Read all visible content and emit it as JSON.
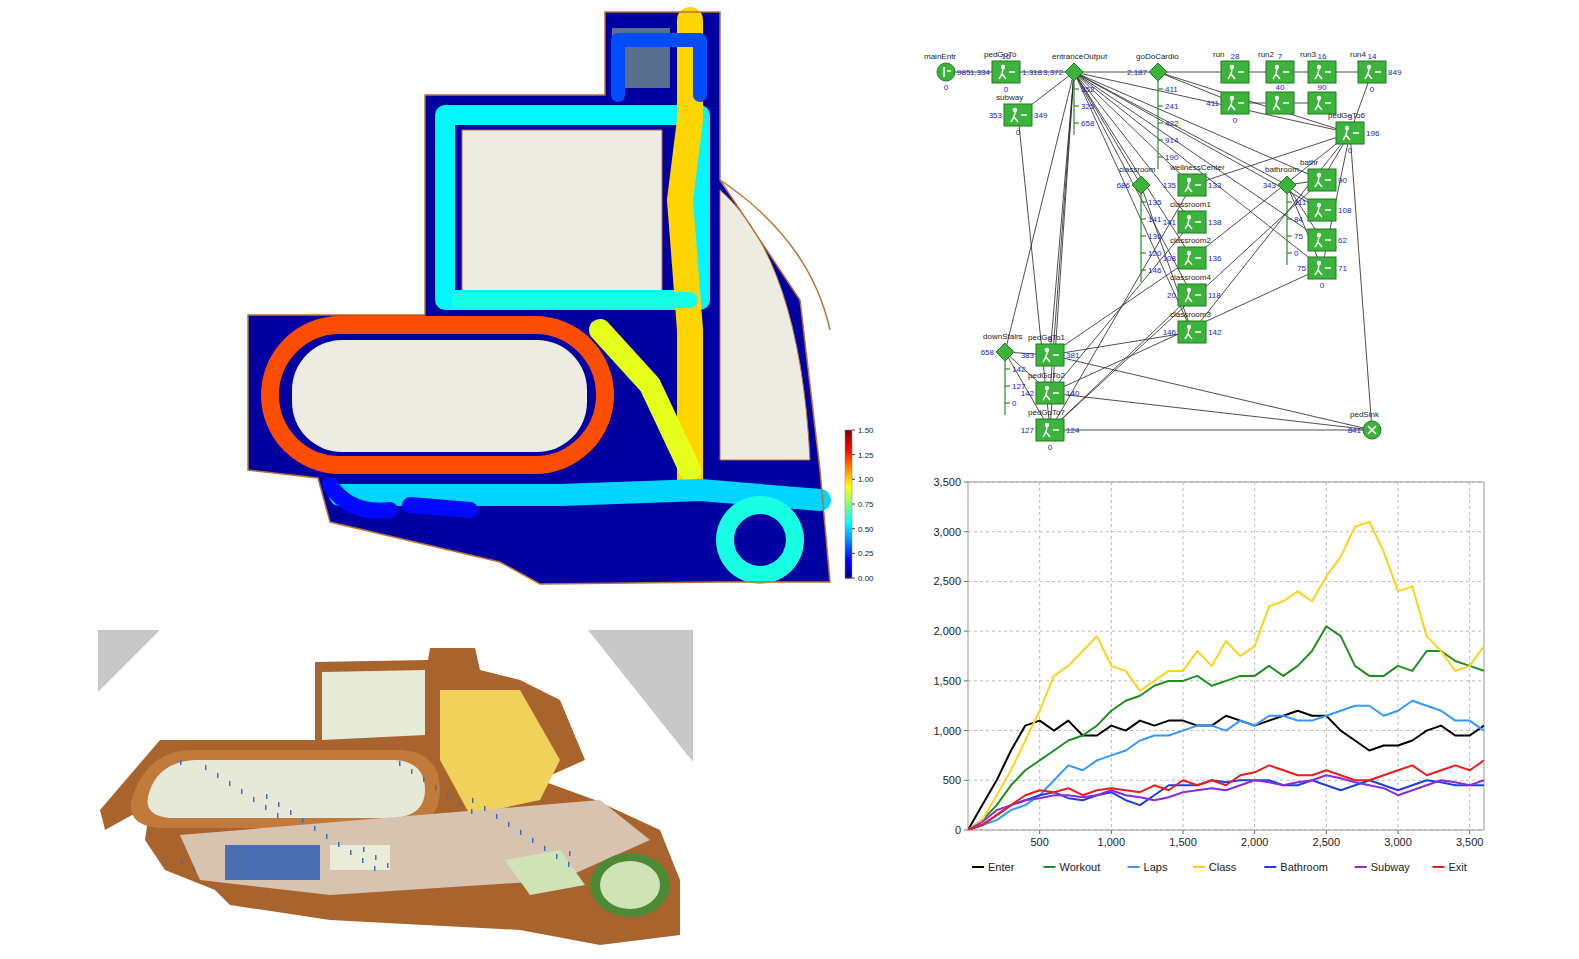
{
  "chart_data": [
    {
      "type": "heatmap",
      "values": [
        0.05,
        1.2,
        0.55,
        1.0,
        0.9,
        0.5,
        0.6,
        0.3,
        0.2,
        0.6
      ],
      "colorbar_range": [
        0,
        1.5
      ],
      "colorbar_ticks": [
        {
          "value": 0,
          "label": "0.00"
        },
        {
          "value": 0.25,
          "label": "0.25"
        },
        {
          "value": 0.5,
          "label": "0.50"
        },
        {
          "value": 0.75,
          "label": "0.75"
        },
        {
          "value": 1,
          "label": "1.00"
        },
        {
          "value": 1.25,
          "label": "1.25"
        },
        {
          "value": 1.5,
          "label": "1.50"
        }
      ]
    },
    {
      "type": "line",
      "grid": true,
      "legend": "bottom",
      "x": [
        0,
        100,
        200,
        300,
        400,
        500,
        600,
        700,
        800,
        900,
        1000,
        1100,
        1200,
        1300,
        1400,
        1500,
        1600,
        1700,
        1800,
        1900,
        2000,
        2100,
        2200,
        2300,
        2400,
        2500,
        2600,
        2700,
        2800,
        2900,
        3000,
        3100,
        3200,
        3300,
        3400,
        3500,
        3600
      ],
      "xlim": [
        0,
        3600
      ],
      "xticks": [
        500,
        {
          "value": 1000,
          "label": "1,000"
        },
        {
          "value": 1500,
          "label": "1,500"
        },
        {
          "value": 2000,
          "label": "2,000"
        },
        {
          "value": 2500,
          "label": "2,500"
        },
        {
          "value": 3000,
          "label": "3,000"
        },
        {
          "value": 3500,
          "label": "3,500"
        }
      ],
      "ylim": [
        0,
        3500
      ],
      "yticks": [
        0,
        500,
        {
          "value": 1000,
          "label": "1,000"
        },
        {
          "value": 1500,
          "label": "1,500"
        },
        {
          "value": 2000,
          "label": "2,000"
        },
        {
          "value": 2500,
          "label": "2,500"
        },
        {
          "value": 3000,
          "label": "3,000"
        },
        {
          "value": 3500,
          "label": "3,500"
        }
      ],
      "series": [
        {
          "name": "Enter",
          "color": "#000000",
          "values": [
            0,
            250,
            500,
            800,
            1050,
            1100,
            1000,
            1100,
            950,
            950,
            1050,
            1000,
            1100,
            1050,
            1100,
            1100,
            1050,
            1050,
            1150,
            1100,
            1050,
            1100,
            1150,
            1200,
            1150,
            1150,
            1000,
            900,
            800,
            850,
            850,
            900,
            1000,
            1050,
            950,
            950,
            1050
          ]
        },
        {
          "name": "Workout",
          "color": "#1f8f1f",
          "values": [
            0,
            100,
            250,
            450,
            600,
            700,
            800,
            900,
            950,
            1050,
            1200,
            1300,
            1350,
            1450,
            1500,
            1500,
            1550,
            1450,
            1500,
            1550,
            1550,
            1650,
            1550,
            1650,
            1800,
            2050,
            1950,
            1650,
            1550,
            1550,
            1650,
            1600,
            1800,
            1800,
            1700,
            1650,
            1600
          ]
        },
        {
          "name": "Laps",
          "color": "#3399ff",
          "values": [
            0,
            50,
            100,
            200,
            250,
            350,
            500,
            650,
            600,
            700,
            750,
            800,
            900,
            950,
            950,
            1000,
            1050,
            1050,
            1000,
            1100,
            1050,
            1150,
            1150,
            1100,
            1100,
            1150,
            1200,
            1250,
            1250,
            1150,
            1200,
            1300,
            1250,
            1200,
            1100,
            1100,
            1000
          ]
        },
        {
          "name": "Class",
          "color": "#ffd21a",
          "values": [
            0,
            100,
            350,
            600,
            900,
            1200,
            1550,
            1650,
            1800,
            1950,
            1650,
            1600,
            1400,
            1500,
            1600,
            1600,
            1800,
            1650,
            1900,
            1750,
            1850,
            2250,
            2300,
            2400,
            2300,
            2550,
            2750,
            3050,
            3100,
            2800,
            2400,
            2450,
            1950,
            1800,
            1600,
            1650,
            1850
          ]
        },
        {
          "name": "Bathroom",
          "color": "#1f3fe0",
          "values": [
            0,
            50,
            150,
            250,
            300,
            350,
            380,
            320,
            300,
            350,
            380,
            300,
            250,
            350,
            450,
            450,
            450,
            500,
            480,
            500,
            500,
            500,
            450,
            450,
            500,
            450,
            400,
            450,
            500,
            450,
            400,
            450,
            500,
            480,
            450,
            450,
            450
          ]
        },
        {
          "name": "Subway",
          "color": "#8a2be2",
          "values": [
            0,
            80,
            200,
            250,
            300,
            320,
            350,
            350,
            330,
            350,
            400,
            350,
            330,
            300,
            330,
            380,
            400,
            420,
            400,
            450,
            500,
            480,
            450,
            480,
            500,
            550,
            520,
            480,
            450,
            420,
            350,
            400,
            450,
            500,
            480,
            450,
            500
          ]
        },
        {
          "name": "Exit",
          "color": "#ee1c1c",
          "values": [
            0,
            50,
            150,
            250,
            350,
            400,
            380,
            420,
            350,
            400,
            420,
            400,
            380,
            450,
            400,
            500,
            450,
            500,
            450,
            550,
            580,
            650,
            600,
            550,
            550,
            600,
            550,
            500,
            500,
            550,
            600,
            650,
            550,
            600,
            650,
            600,
            700
          ]
        }
      ]
    }
  ],
  "flowchart": {
    "nodes": [
      {
        "type": "source",
        "label": "mainEntr",
        "bottom": "0",
        "out": "985"
      },
      {
        "type": "box",
        "label": "pedGoTo",
        "queue": "16",
        "in": "1,334",
        "out": "1,318",
        "bottom": "0"
      },
      {
        "type": "diamond",
        "label": "entranceOutput",
        "in": "3,372",
        "outputs": [
          "352",
          "325",
          "658"
        ]
      },
      {
        "type": "diamond",
        "label": "goDoCardio",
        "in": "2,187",
        "outputs": [
          "411",
          "241",
          "422",
          "914",
          "190"
        ]
      },
      {
        "type": "box",
        "label": "subway",
        "in": "353",
        "out": "349",
        "bottom": "0"
      },
      {
        "type": "box",
        "label": "run",
        "queue": "28"
      },
      {
        "type": "box",
        "label": "run2",
        "queue": "7"
      },
      {
        "type": "box",
        "label": "run3",
        "queue": "16"
      },
      {
        "type": "box",
        "label": "run4",
        "queue": "14",
        "out": "849",
        "bottom": "0"
      },
      {
        "type": "box",
        "in": "411",
        "bottom": "0"
      },
      {
        "type": "box",
        "queue": "40"
      },
      {
        "type": "box",
        "queue": "90"
      },
      {
        "type": "box",
        "label": "pedGoTo6",
        "queue": "3",
        "out": "196",
        "bottom": "0"
      },
      {
        "type": "diamond",
        "label": "classroom",
        "in": "686",
        "outputs": [
          "135",
          "141",
          "136",
          "120",
          "146"
        ]
      },
      {
        "type": "box",
        "label": "wellnessCenter",
        "in": "135",
        "out": "133"
      },
      {
        "type": "box",
        "label": "classroom1",
        "in": "141",
        "out": "138"
      },
      {
        "type": "box",
        "label": "classroom2",
        "in": "108",
        "out": "136"
      },
      {
        "type": "box",
        "label": "classroom4",
        "in": "20",
        "out": "118"
      },
      {
        "type": "box",
        "label": "classroom3",
        "in": "146",
        "out": "142"
      },
      {
        "type": "diamond",
        "label": "bathroom",
        "in": "343",
        "outputs": [
          "111",
          "84",
          "75",
          "0"
        ]
      },
      {
        "type": "box",
        "label": "bathr",
        "out": "90"
      },
      {
        "type": "box",
        "out": "108"
      },
      {
        "type": "box",
        "out": "62"
      },
      {
        "type": "box",
        "in": "75",
        "out": "71",
        "bottom": "0"
      },
      {
        "type": "diamond",
        "label": "downStairs",
        "in": "658",
        "outputs": [
          "142",
          "127",
          "0"
        ]
      },
      {
        "type": "box",
        "label": "pedGoTo1",
        "queue": "8",
        "in": "383",
        "out": "381"
      },
      {
        "type": "box",
        "label": "pedGoTo2",
        "in": "142",
        "out": "140"
      },
      {
        "type": "box",
        "label": "pedGoTo7",
        "in": "127",
        "out": "124",
        "bottom": "0"
      },
      {
        "type": "sink",
        "label": "pedSink",
        "in": "841"
      }
    ]
  }
}
